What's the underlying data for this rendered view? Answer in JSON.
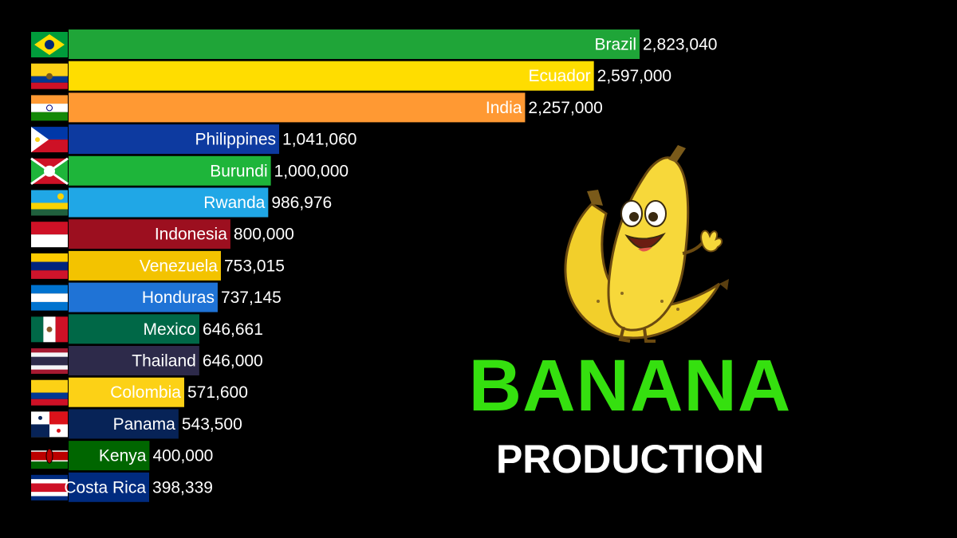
{
  "chart_data": {
    "type": "bar",
    "orientation": "horizontal",
    "title": "BANANA",
    "subtitle": "PRODUCTION",
    "categories": [
      "Brazil",
      "Ecuador",
      "India",
      "Philippines",
      "Burundi",
      "Rwanda",
      "Indonesia",
      "Venezuela",
      "Honduras",
      "Mexico",
      "Thailand",
      "Colombia",
      "Panama",
      "Kenya",
      "Costa Rica"
    ],
    "values": [
      2823040,
      2597000,
      2257000,
      1041060,
      1000000,
      986976,
      800000,
      753015,
      737145,
      646661,
      646000,
      571600,
      543500,
      400000,
      398339
    ],
    "value_labels": [
      "2,823,040",
      "2,597,000",
      "2,257,000",
      "1,041,060",
      "1,000,000",
      "986,976",
      "800,000",
      "753,015",
      "737,145",
      "646,661",
      "646,000",
      "571,600",
      "543,500",
      "400,000",
      "398,339"
    ],
    "colors": [
      "#1fa538",
      "#ffdd00",
      "#ff9933",
      "#0d3aa0",
      "#1eb53a",
      "#20a7e6",
      "#9c0f1f",
      "#f3c300",
      "#1f73d6",
      "#006847",
      "#2d2a4a",
      "#fcd116",
      "#072357",
      "#006600",
      "#002b7f"
    ],
    "flags": [
      "brazil-flag",
      "ecuador-flag",
      "india-flag",
      "philippines-flag",
      "burundi-flag",
      "rwanda-flag",
      "indonesia-flag",
      "venezuela-flag",
      "honduras-flag",
      "mexico-flag",
      "thailand-flag",
      "colombia-flag",
      "panama-flag",
      "kenya-flag",
      "costa-rica-flag"
    ],
    "xlim": [
      0,
      2823040
    ],
    "grid": false,
    "legend": "none"
  },
  "headline": {
    "title": "BANANA",
    "subtitle": "PRODUCTION",
    "title_color": "#35e00f"
  },
  "mascot": {
    "icon": "banana-mascot-icon"
  }
}
